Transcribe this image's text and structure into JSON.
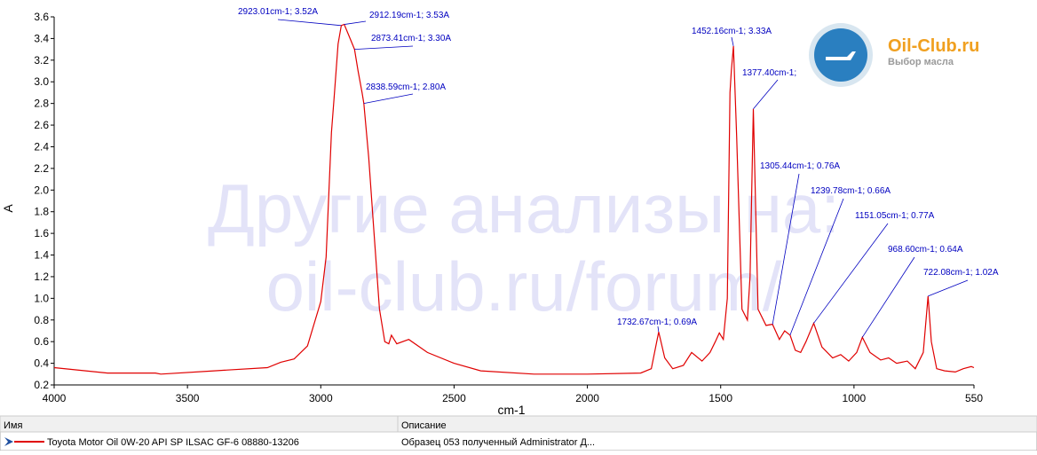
{
  "chart_data": {
    "type": "line",
    "x_label": "cm-1",
    "y_label": "A",
    "xlim": [
      4000,
      550
    ],
    "ylim": [
      0.2,
      3.6
    ],
    "xticks": [
      4000,
      3500,
      3000,
      2500,
      2000,
      1500,
      1000,
      550
    ],
    "yticks": [
      0.2,
      0.4,
      0.6,
      0.8,
      {
        "value": 1,
        "label": "1.0"
      },
      1.2,
      1.4,
      1.6,
      1.8,
      {
        "value": 2,
        "label": "2.0"
      },
      2.2,
      2.4,
      2.6,
      2.8,
      {
        "value": 3,
        "label": "3.0"
      },
      3.2,
      3.4,
      3.6
    ],
    "series": [
      {
        "name": "Toyota Motor Oil 0W-20 API SP ILSAC GF-6 08880-13206",
        "color": "#e00000",
        "x": [
          4000,
          3800,
          3620,
          3600,
          3400,
          3200,
          3150,
          3100,
          3050,
          3000,
          2980,
          2960,
          2950,
          2935,
          2923.01,
          2912.19,
          2890,
          2873.41,
          2860,
          2845,
          2838.59,
          2820,
          2800,
          2780,
          2760,
          2745,
          2735,
          2715,
          2670,
          2600,
          2500,
          2400,
          2200,
          2000,
          1800,
          1760,
          1732.67,
          1710,
          1680,
          1640,
          1609,
          1570,
          1540,
          1520,
          1505,
          1490,
          1475,
          1465,
          1460,
          1452.16,
          1440,
          1420,
          1400,
          1390,
          1377.4,
          1360,
          1330,
          1305.44,
          1280,
          1260,
          1239.78,
          1220,
          1200,
          1180,
          1151.05,
          1120,
          1080,
          1050,
          1020,
          990,
          968.6,
          940,
          900,
          870,
          840,
          800,
          770,
          740,
          722.08,
          710,
          690,
          660,
          620,
          590,
          560,
          550
        ],
        "values": [
          0.36,
          0.31,
          0.31,
          0.3,
          0.33,
          0.36,
          0.41,
          0.44,
          0.56,
          0.97,
          1.38,
          2.53,
          2.85,
          3.35,
          3.52,
          3.53,
          3.4,
          3.3,
          3.1,
          2.9,
          2.8,
          2.3,
          1.6,
          0.9,
          0.6,
          0.58,
          0.66,
          0.58,
          0.62,
          0.5,
          0.4,
          0.33,
          0.3,
          0.3,
          0.31,
          0.35,
          0.69,
          0.45,
          0.35,
          0.38,
          0.5,
          0.42,
          0.5,
          0.6,
          0.68,
          0.62,
          1.0,
          2.9,
          3.1,
          3.33,
          2.5,
          0.9,
          0.8,
          1.2,
          2.75,
          0.9,
          0.75,
          0.76,
          0.62,
          0.7,
          0.66,
          0.52,
          0.5,
          0.6,
          0.77,
          0.55,
          0.45,
          0.48,
          0.42,
          0.5,
          0.64,
          0.5,
          0.43,
          0.45,
          0.4,
          0.42,
          0.35,
          0.5,
          1.02,
          0.6,
          0.35,
          0.33,
          0.32,
          0.35,
          0.37,
          0.36
        ]
      }
    ],
    "annotations": [
      {
        "text": "2923.01cm-1; 3.52A",
        "x": 2923.01,
        "y": 3.52
      },
      {
        "text": "2912.19cm-1; 3.53A",
        "x": 2912.19,
        "y": 3.53
      },
      {
        "text": "2873.41cm-1; 3.30A",
        "x": 2873.41,
        "y": 3.3
      },
      {
        "text": "2838.59cm-1; 2.80A",
        "x": 2838.59,
        "y": 2.8
      },
      {
        "text": "1452.16cm-1; 3.33A",
        "x": 1452.16,
        "y": 3.33
      },
      {
        "text": "1377.40cm-1;",
        "x": 1377.4,
        "y": 2.75
      },
      {
        "text": "1305.44cm-1; 0.76A",
        "x": 1305.44,
        "y": 0.76
      },
      {
        "text": "1239.78cm-1; 0.66A",
        "x": 1239.78,
        "y": 0.66
      },
      {
        "text": "1151.05cm-1; 0.77A",
        "x": 1151.05,
        "y": 0.77
      },
      {
        "text": "968.60cm-1; 0.64A",
        "x": 968.6,
        "y": 0.64
      },
      {
        "text": "722.08cm-1; 1.02A",
        "x": 722.08,
        "y": 1.02
      },
      {
        "text": "1732.67cm-1; 0.69A",
        "x": 1732.67,
        "y": 0.69
      }
    ]
  },
  "watermark": [
    "Другие анализы на:",
    "oil-club.ru/forum/"
  ],
  "logo": {
    "title": "Oil-Club.ru",
    "subtitle": "Выбор масла"
  },
  "table": {
    "headers": [
      "Имя",
      "Описание"
    ],
    "rows": [
      [
        "Toyota Motor Oil 0W-20 API SP ILSAC GF-6 08880-13206",
        "Образец 053 полученный Administrator Д..."
      ]
    ]
  }
}
